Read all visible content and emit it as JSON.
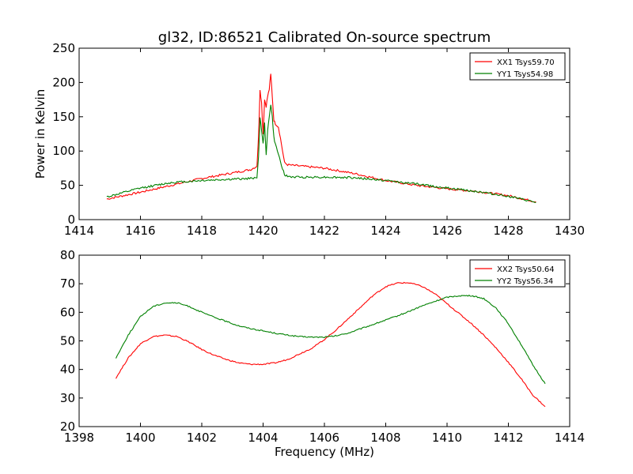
{
  "title": "gl32, ID:86521 Calibrated On-source spectrum",
  "colors": {
    "red": "#ff0000",
    "green": "#008000",
    "axis": "#000000",
    "background": "#ffffff"
  },
  "chart_data": [
    {
      "type": "line",
      "title": "gl32, ID:86521 Calibrated On-source spectrum",
      "xlabel": "",
      "ylabel": "Power in Kelvin",
      "xlim": [
        1414,
        1430
      ],
      "ylim": [
        0,
        250
      ],
      "xticks": [
        "1414",
        "1416",
        "1418",
        "1420",
        "1422",
        "1424",
        "1426",
        "1428",
        "1430"
      ],
      "yticks": [
        "0",
        "50",
        "100",
        "150",
        "200",
        "250"
      ],
      "grid": false,
      "legend": "top-right",
      "series": [
        {
          "name": "XX1 Tsys59.70",
          "color": "#ff0000",
          "x": [
            1414.9,
            1416,
            1417,
            1418,
            1419,
            1419.6,
            1419.8,
            1419.85,
            1419.9,
            1419.95,
            1420.0,
            1420.05,
            1420.1,
            1420.15,
            1420.2,
            1420.25,
            1420.3,
            1420.35,
            1420.4,
            1420.5,
            1420.6,
            1420.7,
            1420.8,
            1421,
            1422,
            1423,
            1424,
            1425,
            1426,
            1427,
            1428,
            1428.9
          ],
          "y": [
            30,
            40,
            50,
            60,
            68,
            73,
            78,
            120,
            190,
            170,
            125,
            175,
            165,
            180,
            190,
            212,
            180,
            145,
            140,
            135,
            110,
            83,
            80,
            79,
            75,
            67,
            57,
            50,
            45,
            41,
            35,
            26
          ]
        },
        {
          "name": "YY1 Tsys54.98",
          "color": "#008000",
          "x": [
            1414.9,
            1416,
            1417,
            1418,
            1419,
            1419.6,
            1419.8,
            1419.85,
            1419.9,
            1419.95,
            1420.0,
            1420.05,
            1420.1,
            1420.15,
            1420.2,
            1420.25,
            1420.3,
            1420.35,
            1420.4,
            1420.5,
            1420.6,
            1420.7,
            1420.8,
            1421,
            1422,
            1423,
            1424,
            1425,
            1426,
            1427,
            1428,
            1428.9
          ],
          "y": [
            33,
            46,
            54,
            57,
            59,
            60,
            62,
            90,
            150,
            130,
            110,
            140,
            95,
            130,
            150,
            168,
            150,
            120,
            110,
            95,
            80,
            65,
            63,
            62,
            62,
            61,
            57,
            52,
            46,
            41,
            34,
            25
          ]
        }
      ]
    },
    {
      "type": "line",
      "title": "",
      "xlabel": "Frequency (MHz)",
      "ylabel": "",
      "xlim": [
        1398,
        1414
      ],
      "ylim": [
        20,
        80
      ],
      "xticks": [
        "1398",
        "1400",
        "1402",
        "1404",
        "1406",
        "1408",
        "1410",
        "1412",
        "1414"
      ],
      "yticks": [
        "20",
        "30",
        "40",
        "50",
        "60",
        "70",
        "80"
      ],
      "grid": false,
      "legend": "top-right",
      "series": [
        {
          "name": "XX2 Tsys50.64",
          "color": "#ff0000",
          "x": [
            1399.2,
            1399.6,
            1400.0,
            1400.4,
            1400.8,
            1401.2,
            1401.6,
            1402.0,
            1402.4,
            1402.8,
            1403.2,
            1403.6,
            1404.0,
            1404.4,
            1404.8,
            1405.2,
            1405.6,
            1406.0,
            1406.4,
            1406.8,
            1407.2,
            1407.6,
            1408.0,
            1408.4,
            1408.8,
            1409.2,
            1409.6,
            1410.0,
            1410.4,
            1410.8,
            1411.2,
            1411.6,
            1412.0,
            1412.4,
            1412.8,
            1413.2
          ],
          "y": [
            37,
            44,
            49,
            51.5,
            52,
            51.5,
            49.5,
            47,
            45,
            43.5,
            42.3,
            41.8,
            41.8,
            42.3,
            43.5,
            45.5,
            47.5,
            50.5,
            54,
            58,
            62,
            66,
            69,
            70.3,
            70.3,
            69,
            66.5,
            63,
            59.5,
            56,
            52,
            47.5,
            42.5,
            37,
            31,
            27
          ]
        },
        {
          "name": "YY2 Tsys56.34",
          "color": "#008000",
          "x": [
            1399.2,
            1399.6,
            1400.0,
            1400.4,
            1400.8,
            1401.2,
            1401.6,
            1402.0,
            1402.4,
            1402.8,
            1403.2,
            1403.6,
            1404.0,
            1404.4,
            1404.8,
            1405.2,
            1405.6,
            1406.0,
            1406.4,
            1406.8,
            1407.2,
            1407.6,
            1408.0,
            1408.4,
            1408.8,
            1409.2,
            1409.6,
            1410.0,
            1410.4,
            1410.8,
            1411.2,
            1411.6,
            1412.0,
            1412.4,
            1412.8,
            1413.2
          ],
          "y": [
            44,
            52,
            58.5,
            62,
            63.3,
            63.3,
            62,
            60,
            58.3,
            56.8,
            55.3,
            54.3,
            53.5,
            52.7,
            52,
            51.5,
            51.3,
            51.3,
            51.8,
            52.8,
            54.3,
            55.8,
            57.3,
            58.8,
            60.5,
            62.3,
            63.8,
            65.3,
            65.8,
            65.8,
            64.8,
            61.5,
            56,
            49,
            41.5,
            35
          ]
        }
      ]
    }
  ]
}
